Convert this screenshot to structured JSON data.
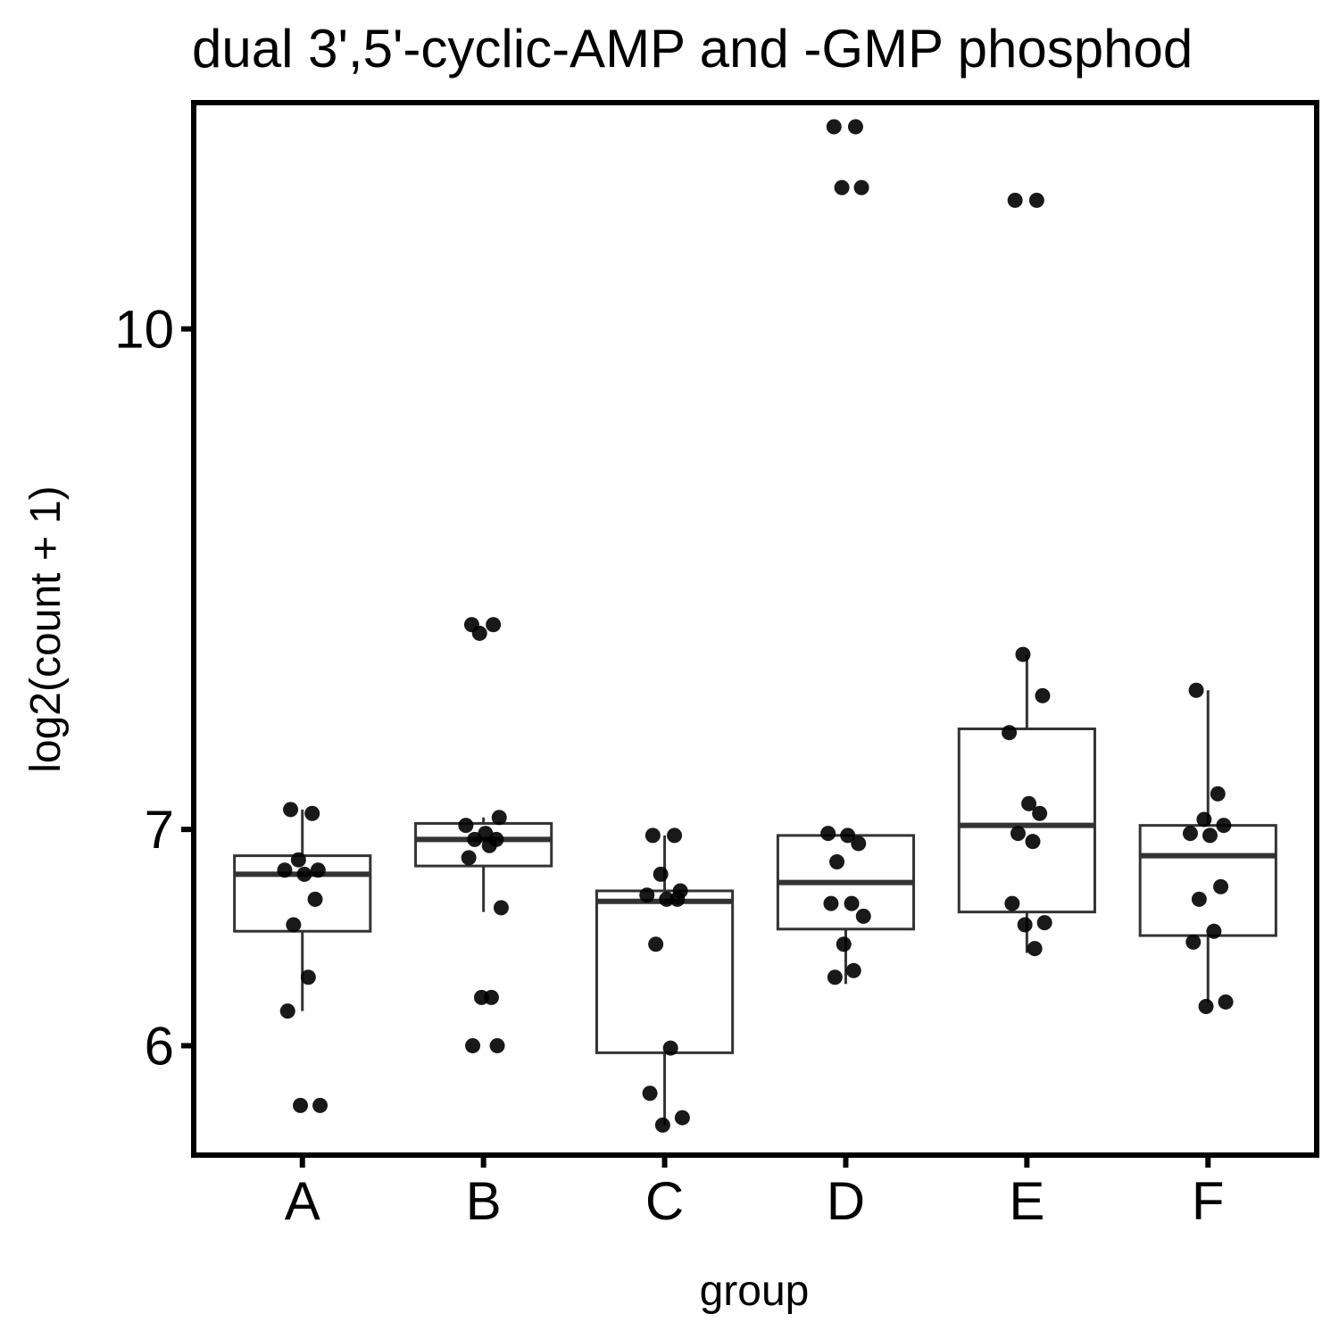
{
  "chart_data": {
    "type": "box",
    "title": "dual 3',5'-cyclic-AMP and -GMP phosphod",
    "xlabel": "group",
    "ylabel": "log2(count + 1)",
    "y_scale": "log",
    "ylim": [
      5.55,
      11.75
    ],
    "y_ticks": [
      {
        "value": 6,
        "label": "6"
      },
      {
        "value": 7,
        "label": "7"
      },
      {
        "value": 10,
        "label": "10"
      }
    ],
    "categories": [
      "A",
      "B",
      "C",
      "D",
      "E",
      "F"
    ],
    "boxes": [
      {
        "group": "A",
        "whisker_low": 6.15,
        "q1": 6.51,
        "median": 6.78,
        "q3": 6.87,
        "whisker_high": 7.1
      },
      {
        "group": "B",
        "whisker_low": 6.6,
        "q1": 6.82,
        "median": 6.95,
        "q3": 7.03,
        "whisker_high": 7.06
      },
      {
        "group": "C",
        "whisker_low": 5.67,
        "q1": 5.97,
        "median": 6.65,
        "q3": 6.7,
        "whisker_high": 6.97
      },
      {
        "group": "D",
        "whisker_low": 6.27,
        "q1": 6.52,
        "median": 6.74,
        "q3": 6.97,
        "whisker_high": 6.98
      },
      {
        "group": "E",
        "whisker_low": 6.41,
        "q1": 6.6,
        "median": 7.02,
        "q3": 7.52,
        "whisker_high": 7.93
      },
      {
        "group": "F",
        "whisker_low": 6.19,
        "q1": 6.49,
        "median": 6.87,
        "q3": 7.02,
        "whisker_high": 7.73
      }
    ],
    "points": [
      {
        "group": "A",
        "values": [
          7.1,
          7.08,
          6.85,
          6.8,
          6.8,
          6.78,
          6.66,
          6.54,
          6.3,
          6.15,
          5.75,
          5.75
        ]
      },
      {
        "group": "B",
        "values": [
          8.1,
          8.1,
          8.05,
          7.06,
          7.02,
          6.98,
          6.95,
          6.95,
          6.92,
          6.86,
          6.62,
          6.21,
          6.21,
          6.0,
          6.0
        ]
      },
      {
        "group": "C",
        "values": [
          6.97,
          6.97,
          6.78,
          6.7,
          6.68,
          6.66,
          6.66,
          6.45,
          5.99,
          5.8,
          5.7,
          5.67
        ]
      },
      {
        "group": "D",
        "values": [
          11.55,
          11.55,
          11.06,
          11.06,
          6.98,
          6.97,
          6.93,
          6.84,
          6.64,
          6.64,
          6.58,
          6.45,
          6.33,
          6.3
        ]
      },
      {
        "group": "E",
        "values": [
          10.96,
          10.96,
          7.93,
          7.7,
          7.5,
          7.13,
          7.08,
          6.98,
          6.94,
          6.64,
          6.55,
          6.54,
          6.43
        ]
      },
      {
        "group": "F",
        "values": [
          7.73,
          7.18,
          7.05,
          7.02,
          6.98,
          6.97,
          6.72,
          6.66,
          6.51,
          6.46,
          6.19,
          6.17
        ]
      }
    ]
  }
}
